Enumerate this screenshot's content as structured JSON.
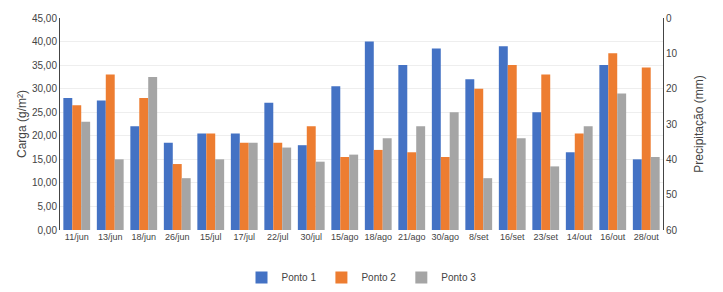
{
  "chart_data": {
    "type": "bar",
    "categories": [
      "11/jun",
      "13/jun",
      "18/jun",
      "26/jun",
      "15/jul",
      "17/jul",
      "22/jul",
      "30/jul",
      "15/ago",
      "18/ago",
      "21/ago",
      "30/ago",
      "8/set",
      "16/set",
      "23/set",
      "14/out",
      "16/out",
      "28/out"
    ],
    "series": [
      {
        "name": "Ponto 1",
        "color": "#4472C4",
        "values": [
          28.0,
          27.5,
          22.0,
          18.5,
          20.5,
          20.5,
          27.0,
          18.0,
          30.5,
          40.0,
          35.0,
          38.5,
          32.0,
          39.0,
          25.0,
          16.5,
          35.0,
          15.0
        ]
      },
      {
        "name": "Ponto 2",
        "color": "#ED7D31",
        "values": [
          26.5,
          33.0,
          28.0,
          14.0,
          20.5,
          18.5,
          18.5,
          22.0,
          15.5,
          17.0,
          16.5,
          15.5,
          30.0,
          35.0,
          33.0,
          20.5,
          37.5,
          34.5
        ]
      },
      {
        "name": "Ponto 3",
        "color": "#A5A5A5",
        "values": [
          23.0,
          15.0,
          32.5,
          11.0,
          15.0,
          18.5,
          17.5,
          14.5,
          16.0,
          19.5,
          22.0,
          25.0,
          11.0,
          19.5,
          13.5,
          22.0,
          29.0,
          15.5
        ]
      }
    ],
    "ylabel": "Carga (g/m²)",
    "y2label": "Precipitação (mm)",
    "ylim": [
      0,
      45
    ],
    "yticks": [
      {
        "value": 0.0,
        "label": "0,00"
      },
      {
        "value": 5.0,
        "label": "5,00"
      },
      {
        "value": 10.0,
        "label": "10,00"
      },
      {
        "value": 15.0,
        "label": "15,00"
      },
      {
        "value": 20.0,
        "label": "20,00"
      },
      {
        "value": 25.0,
        "label": "25,00"
      },
      {
        "value": 30.0,
        "label": "30,00"
      },
      {
        "value": 35.0,
        "label": "35,00"
      },
      {
        "value": 40.0,
        "label": "40,00"
      },
      {
        "value": 45.0,
        "label": "45,00"
      }
    ],
    "y2lim": [
      60,
      0
    ],
    "y2ticks": [
      0,
      10,
      20,
      30,
      40,
      50,
      60
    ],
    "grid": true,
    "legend": "bottom"
  }
}
